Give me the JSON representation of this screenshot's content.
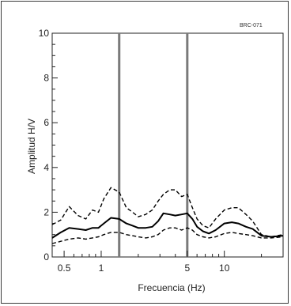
{
  "chart_data": {
    "type": "line",
    "id_label": "BRC-071",
    "xlabel": "Frecuencia (Hz)",
    "ylabel": "Amplitud H/V",
    "x_scale": "log",
    "xlim": [
      0.4,
      30
    ],
    "ylim": [
      0,
      10
    ],
    "x_ticks": [
      {
        "value": 0.5,
        "label": "0.5"
      },
      {
        "value": 1,
        "label": "1"
      },
      {
        "value": 5,
        "label": "5"
      },
      {
        "value": 10,
        "label": "10"
      }
    ],
    "y_ticks": [
      {
        "value": 0,
        "label": "0"
      },
      {
        "value": 2,
        "label": "2"
      },
      {
        "value": 4,
        "label": "4"
      },
      {
        "value": 6,
        "label": "6"
      },
      {
        "value": 8,
        "label": "8"
      },
      {
        "value": 10,
        "label": "10"
      }
    ],
    "vertical_lines": [
      1.4,
      5
    ],
    "grid": false,
    "colors": {
      "mean": "#000000",
      "bounds": "#000000",
      "vlines": "#7a7a7a"
    },
    "series": [
      {
        "style": "dashed",
        "x": [
          0.4,
          0.47,
          0.55,
          0.65,
          0.75,
          0.85,
          0.95,
          1.05,
          1.2,
          1.4,
          1.6,
          1.8,
          2.0,
          2.3,
          2.6,
          2.9,
          3.2,
          3.6,
          4.0,
          4.5,
          5.0,
          5.5,
          6.0,
          6.7,
          7.5,
          8.5,
          10,
          11.5,
          13,
          15,
          17,
          20,
          24,
          30
        ],
        "y": [
          1.45,
          1.65,
          2.25,
          1.85,
          1.7,
          2.1,
          2.0,
          2.6,
          3.1,
          2.9,
          2.2,
          2.0,
          1.8,
          1.9,
          2.1,
          2.5,
          2.8,
          3.0,
          3.0,
          2.7,
          2.8,
          2.2,
          1.7,
          1.4,
          1.3,
          1.7,
          2.1,
          2.2,
          2.2,
          1.9,
          1.6,
          1.0,
          0.9,
          1.0
        ]
      },
      {
        "style": "solid",
        "x": [
          0.4,
          0.47,
          0.55,
          0.65,
          0.75,
          0.85,
          0.95,
          1.05,
          1.2,
          1.4,
          1.6,
          1.8,
          2.0,
          2.3,
          2.6,
          2.9,
          3.2,
          3.6,
          4.0,
          4.5,
          5.0,
          5.5,
          6.0,
          6.7,
          7.5,
          8.5,
          10,
          11.5,
          13,
          15,
          17,
          20,
          24,
          30
        ],
        "y": [
          0.85,
          1.1,
          1.3,
          1.25,
          1.2,
          1.3,
          1.3,
          1.5,
          1.75,
          1.7,
          1.5,
          1.4,
          1.3,
          1.3,
          1.35,
          1.6,
          1.95,
          1.9,
          1.85,
          1.9,
          1.95,
          1.7,
          1.35,
          1.15,
          1.05,
          1.2,
          1.5,
          1.55,
          1.5,
          1.35,
          1.25,
          0.95,
          0.9,
          0.95
        ]
      },
      {
        "style": "dashed",
        "x": [
          0.4,
          0.47,
          0.55,
          0.65,
          0.75,
          0.85,
          0.95,
          1.05,
          1.2,
          1.4,
          1.6,
          1.8,
          2.0,
          2.3,
          2.6,
          2.9,
          3.2,
          3.6,
          4.0,
          4.5,
          5.0,
          5.5,
          6.0,
          6.7,
          7.5,
          8.5,
          10,
          11.5,
          13,
          15,
          17,
          20,
          24,
          30
        ],
        "y": [
          0.6,
          0.7,
          0.8,
          0.85,
          0.8,
          0.85,
          0.9,
          1.0,
          1.1,
          1.1,
          1.0,
          0.95,
          0.9,
          0.85,
          0.9,
          1.0,
          1.2,
          1.3,
          1.3,
          1.2,
          1.3,
          1.2,
          1.0,
          0.9,
          0.85,
          0.9,
          1.05,
          1.1,
          1.05,
          1.0,
          0.95,
          0.85,
          0.85,
          0.9
        ]
      }
    ]
  }
}
